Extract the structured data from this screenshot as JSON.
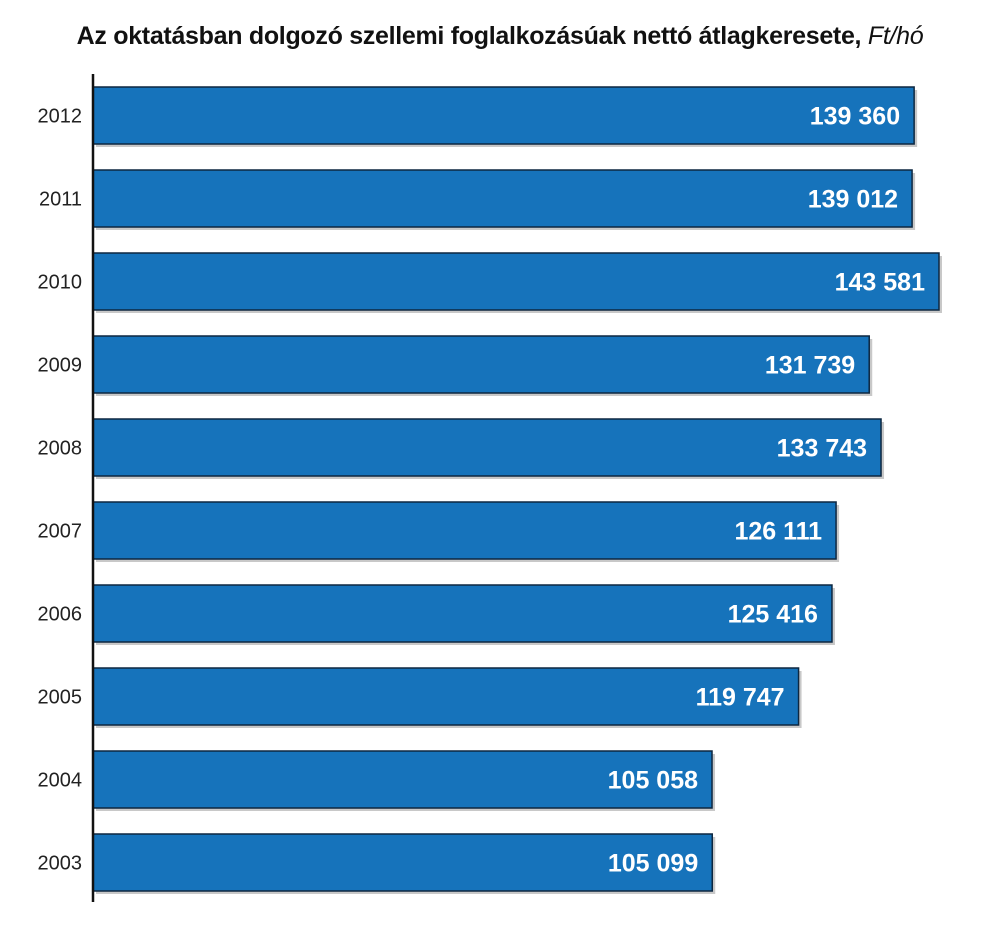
{
  "chart_title": {
    "main": "Az oktatásban dolgozó szellemi foglalkozásúak nettó átlagkeresete,",
    "unit": "Ft/hó"
  },
  "chart_data": {
    "type": "bar",
    "orientation": "horizontal",
    "title": "Az oktatásban dolgozó szellemi foglalkozásúak nettó átlagkeresete, Ft/hó",
    "xlabel": "",
    "ylabel": "",
    "categories": [
      "2012",
      "2011",
      "2010",
      "2009",
      "2008",
      "2007",
      "2006",
      "2005",
      "2004",
      "2003"
    ],
    "values": [
      139360,
      139012,
      143581,
      131739,
      133743,
      126111,
      125416,
      119747,
      105058,
      105099
    ],
    "value_labels": [
      "139 360",
      "139 012",
      "143 581",
      "131 739",
      "133 743",
      "126 111",
      "125 416",
      "119 747",
      "105 058",
      "105 099"
    ],
    "xlim": [
      0,
      143581
    ],
    "grid": false,
    "legend": "none",
    "colors": {
      "bar_fill": "#1673bb",
      "bar_edge": "#0d2740",
      "bar_shadow": "#9a9a9a",
      "value_text": "#ffffff",
      "axis": "#111111"
    }
  }
}
